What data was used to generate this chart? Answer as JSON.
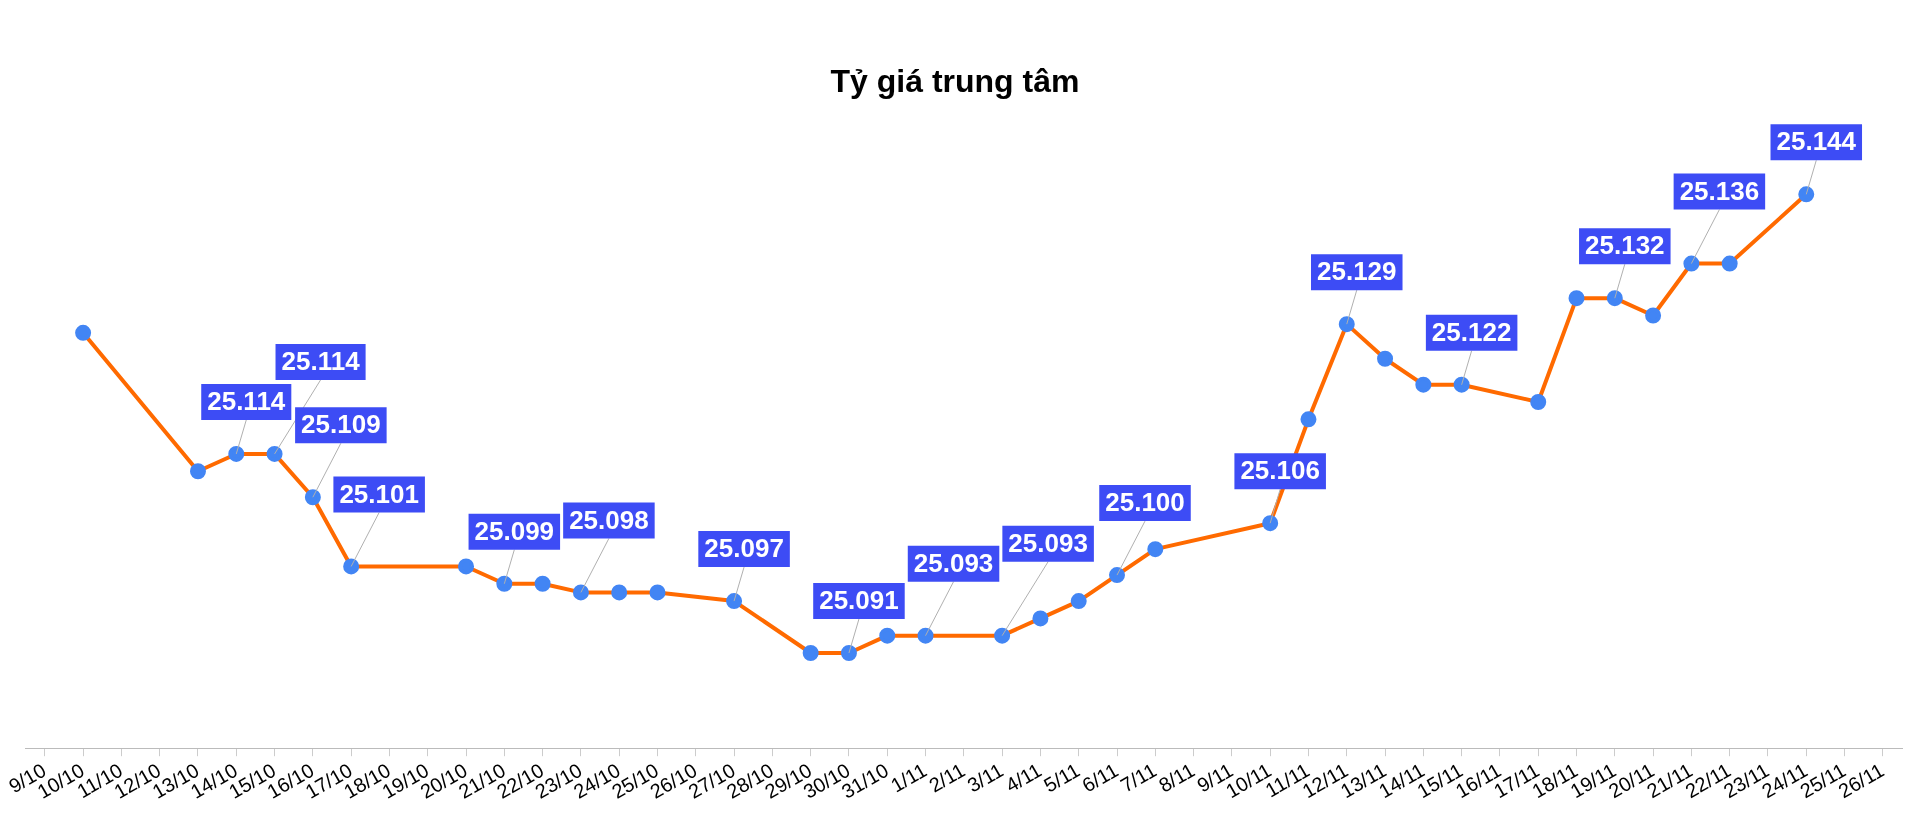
{
  "chart_data": {
    "type": "line",
    "title": "Tỷ giá trung tâm",
    "categories": [
      "9/10",
      "10/10",
      "11/10",
      "12/10",
      "13/10",
      "14/10",
      "15/10",
      "16/10",
      "17/10",
      "18/10",
      "19/10",
      "20/10",
      "21/10",
      "22/10",
      "23/10",
      "24/10",
      "25/10",
      "26/10",
      "27/10",
      "28/10",
      "29/10",
      "30/10",
      "31/10",
      "1/11",
      "2/11",
      "3/11",
      "4/11",
      "5/11",
      "6/11",
      "7/11",
      "8/11",
      "9/11",
      "10/11",
      "11/11",
      "12/11",
      "13/11",
      "14/11",
      "15/11",
      "16/11",
      "17/11",
      "18/11",
      "19/11",
      "20/11",
      "21/11",
      "22/11",
      "23/11",
      "24/11",
      "25/11",
      "26/11"
    ],
    "series": [
      {
        "color": "#ff6a00",
        "values": [
          null,
          25.128,
          null,
          null,
          25.112,
          25.114,
          25.114,
          25.109,
          25.101,
          null,
          null,
          25.101,
          25.099,
          25.099,
          25.098,
          25.098,
          25.098,
          null,
          25.097,
          null,
          25.091,
          25.091,
          25.093,
          25.093,
          null,
          25.093,
          25.095,
          25.097,
          25.1,
          25.103,
          null,
          null,
          25.106,
          25.118,
          25.129,
          25.125,
          25.122,
          25.122,
          null,
          25.12,
          25.132,
          25.132,
          25.13,
          25.136,
          25.136,
          null,
          25.144,
          null,
          null
        ],
        "value_labels": [
          null,
          null,
          null,
          null,
          null,
          "25.114",
          "25.114",
          "25.109",
          "25.101",
          null,
          null,
          null,
          "25.099",
          null,
          "25.098",
          null,
          null,
          null,
          "25.097",
          null,
          null,
          "25.091",
          null,
          "25.093",
          null,
          "25.093",
          null,
          null,
          "25.100",
          null,
          null,
          null,
          "25.106",
          null,
          "25.129",
          null,
          null,
          "25.122",
          null,
          null,
          null,
          "25.132",
          null,
          "25.136",
          null,
          null,
          "25.144",
          null,
          null
        ]
      }
    ],
    "tick_labels": "x",
    "grid": false,
    "legend": false,
    "marker": "circle",
    "line_style": "solid"
  }
}
